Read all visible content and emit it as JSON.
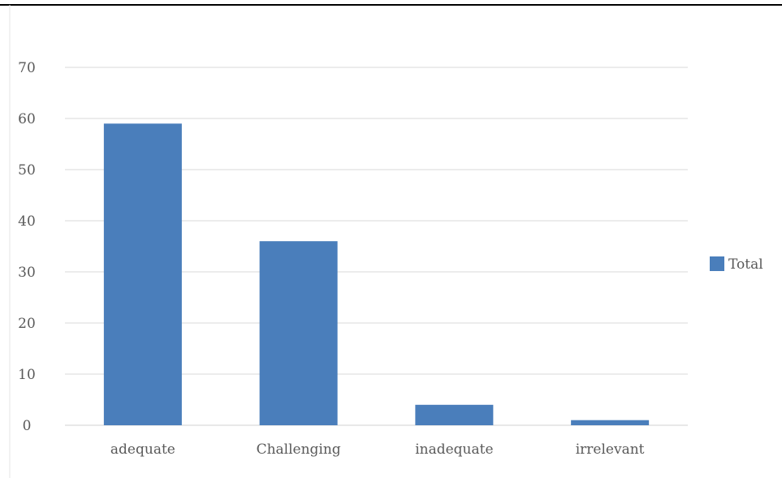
{
  "chart_data": {
    "type": "bar",
    "categories": [
      "adequate",
      "Challenging",
      "inadequate",
      "irrelevant"
    ],
    "series": [
      {
        "name": "Total",
        "values": [
          59,
          36,
          4,
          1
        ],
        "color": "#4a7ebb"
      }
    ],
    "ylim": [
      0,
      70
    ],
    "yticks": [
      0,
      10,
      20,
      30,
      40,
      50,
      60,
      70
    ],
    "grid": true,
    "legend": "right",
    "title": "",
    "xlabel": "",
    "ylabel": ""
  }
}
